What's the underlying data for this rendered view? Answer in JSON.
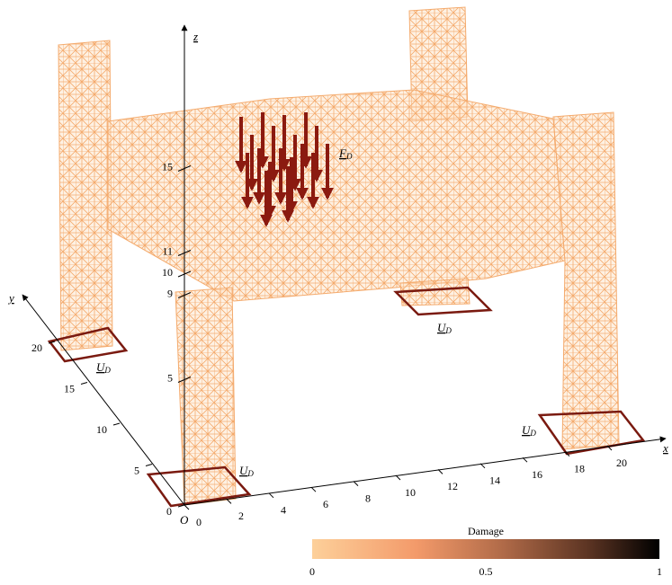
{
  "axes": {
    "origin": "O",
    "x": {
      "label": "x",
      "ticks": [
        0,
        2,
        4,
        6,
        8,
        10,
        12,
        14,
        16,
        18,
        20
      ]
    },
    "y": {
      "label": "y",
      "ticks": [
        0,
        5,
        10,
        15,
        20
      ]
    },
    "z": {
      "label": "z",
      "ticks": [
        5,
        9,
        10,
        11,
        15
      ]
    }
  },
  "annotations": {
    "force": {
      "symbol": "F",
      "subscript": "D"
    },
    "supports": [
      {
        "symbol": "U",
        "subscript": "D"
      },
      {
        "symbol": "U",
        "subscript": "D"
      },
      {
        "symbol": "U",
        "subscript": "D"
      },
      {
        "symbol": "U",
        "subscript": "D"
      }
    ]
  },
  "colorbar": {
    "title": "Damage",
    "ticks": [
      0,
      0.5,
      1
    ]
  }
}
